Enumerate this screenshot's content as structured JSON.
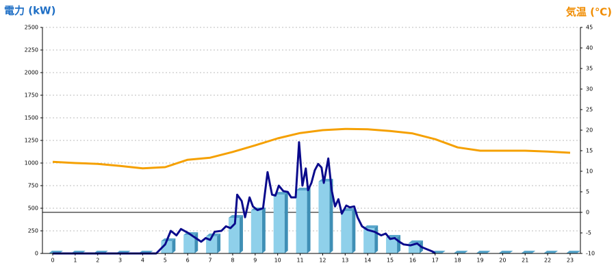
{
  "chart_data": {
    "type": "combo",
    "title_left": "電力 (kW)",
    "title_right": "気温 (℃)",
    "categories": [
      "0",
      "1",
      "2",
      "3",
      "4",
      "5",
      "6",
      "7",
      "8",
      "9",
      "10",
      "11",
      "12",
      "13",
      "14",
      "15",
      "16",
      "17",
      "18",
      "19",
      "20",
      "21",
      "22",
      "23"
    ],
    "ylim": [
      0,
      2500
    ],
    "yticks": [
      0,
      250,
      500,
      750,
      1000,
      1250,
      1500,
      1750,
      2000,
      2250,
      2500
    ],
    "y2lim": [
      -10,
      45
    ],
    "y2ticks": [
      -10,
      -5,
      0,
      5,
      10,
      15,
      20,
      25,
      30,
      35,
      40,
      45
    ],
    "grid": true,
    "series": [
      {
        "type": "bar",
        "color": "#8fd0ea",
        "values": [
          0,
          0,
          0,
          0,
          0,
          136,
          205,
          190,
          394,
          477,
          651,
          697,
          795,
          470,
          280,
          174,
          114,
          0,
          0,
          0,
          0,
          0,
          0,
          0
        ]
      },
      {
        "type": "line",
        "color": "#0a0a8c",
        "x": [
          0,
          4.6,
          5.0,
          5.25,
          5.5,
          5.7,
          6.0,
          6.3,
          6.6,
          6.8,
          7.0,
          7.2,
          7.5,
          7.7,
          7.9,
          8.1,
          8.2,
          8.4,
          8.55,
          8.75,
          8.9,
          9.1,
          9.35,
          9.55,
          9.75,
          9.9,
          10.05,
          10.25,
          10.45,
          10.6,
          10.8,
          10.95,
          11.1,
          11.25,
          11.35,
          11.5,
          11.65,
          11.8,
          11.95,
          12.05,
          12.25,
          12.4,
          12.55,
          12.7,
          12.85,
          13.05,
          13.2,
          13.4,
          13.55,
          13.75,
          14.0,
          14.3,
          14.6,
          14.8,
          15.0,
          15.2,
          15.4,
          15.6,
          15.9,
          16.2,
          16.4,
          16.7,
          16.9,
          17.0
        ],
        "values": [
          0,
          0,
          100,
          250,
          200,
          270,
          230,
          180,
          130,
          170,
          150,
          240,
          250,
          300,
          280,
          330,
          650,
          580,
          400,
          620,
          520,
          480,
          500,
          900,
          650,
          640,
          750,
          690,
          680,
          620,
          620,
          1230,
          750,
          940,
          700,
          780,
          920,
          990,
          950,
          780,
          1050,
          700,
          520,
          600,
          440,
          530,
          510,
          520,
          400,
          300,
          260,
          240,
          200,
          220,
          160,
          170,
          130,
          100,
          90,
          110,
          70,
          40,
          20,
          0
        ]
      },
      {
        "type": "line",
        "axis": "y2",
        "color": "#f5a000",
        "values": [
          12.3,
          12,
          11.8,
          11.3,
          10.7,
          11,
          12.8,
          13.3,
          14.7,
          16.3,
          18,
          19.3,
          20,
          20.3,
          20.2,
          19.8,
          19.2,
          17.8,
          15.8,
          15,
          15,
          15,
          14.8,
          14.5
        ]
      }
    ]
  }
}
